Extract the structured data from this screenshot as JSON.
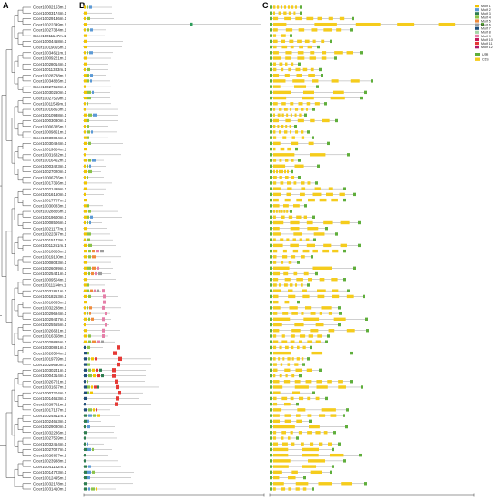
{
  "panels": {
    "a": "A",
    "b": "B",
    "c": "C"
  },
  "genes": [
    "Cicer10002163m.1",
    "Cicer10003174m.1",
    "Cicer10029136m.1",
    "Cicer10022349m.1",
    "Cicer10027334m.1",
    "Cicer10011147m.1",
    "Cicer10004458m.1",
    "Cicer10019055m.1",
    "Cicer10034611m.1",
    "Cicer10009221m.1",
    "Cicer10028014m.1",
    "Cicer10011333m.1",
    "Cicer10028788m.1",
    "Cicer10034826m.1",
    "Cicer10027650m.1",
    "Cicer10030260m.1",
    "Cicer10027559m.1",
    "Cicer10011549m.1",
    "Cicer10016853m.1",
    "Cicer10010938m.1",
    "Cicer10003080m.1",
    "Cicer10006385m.1",
    "Cicer10009851m.1",
    "Cicer10030884m.1",
    "Cicer10030494m.1",
    "Cicer10019624m.1",
    "Cicer10031682m.1",
    "Cicer10016462m.1",
    "Cicer10003423m.1",
    "Cicer10027020m.1",
    "Cicer10006776m.1",
    "Cicer10017366m.1",
    "Cicer10021499m.1",
    "Cicer10016160m.1",
    "Cicer10017707m.1",
    "Cicer10030083m.1",
    "Cicer10028826m.1",
    "Cicer10019600m.1",
    "Cicer10008506m.1",
    "Cicer10021177m.1",
    "Cicer10022397m.1",
    "Cicer10015173m.1",
    "Cicer10011261m.1",
    "Cicer10010826m.1",
    "Cicer10019100m.1",
    "Cicer10008033m.1",
    "Cicer10026099m.1",
    "Cicer10025441m.1",
    "Cicer10009504m.1",
    "Cicer10011134m.1",
    "Cicer10031861m.1",
    "Cicer10018253m.1",
    "Cicer10018063m.1",
    "Cicer10032288m.1",
    "Cicer10029694m.1",
    "Cicer10029447m.1",
    "Cicer10025555m.1",
    "Cicer10026631m.1",
    "Cicer10016358m.1",
    "Cicer10029895m.1",
    "Cicer10030891m.1",
    "Cicer10026504m.1",
    "Cicer10019759m.1",
    "Cicer10029630m.1",
    "Cicer10030241m.1",
    "Cicer10004314m.1",
    "Cicer10026701m.1",
    "Cicer10031667m.1",
    "Cicer10007204m.1",
    "Cicer10014663m.1",
    "Cicer10028721m.1",
    "Cicer10017137m.1",
    "Cicer10024811m.1",
    "Cicer10024653m.1",
    "Cicer10029080m.1",
    "Cicer10032286m.1",
    "Cicer10027559m.1",
    "Cicer10032454m.1",
    "Cicer10027027m.1",
    "Cicer10026867m.1",
    "Cicer10023988m.1",
    "Cicer10041182m.1",
    "Cicer10014723m.1",
    "Cicer10012495m.1",
    "Cicer10032178m.1",
    "Cicer10031410m.1"
  ],
  "motif_legend": [
    "Motif 1",
    "Motif 2",
    "Motif 3",
    "Motif 4",
    "Motif 5",
    "Motif 6",
    "Motif 7",
    "Motif 8",
    "Motif 9",
    "Motif 10",
    "Motif 11",
    "Motif 12"
  ],
  "motif_colors": [
    "#f2c500",
    "#5c9ad6",
    "#2e7d4f",
    "#8bc34a",
    "#f08a3a",
    "#9e9e9e",
    "#1f4e79",
    "#a5d6a7",
    "#e57fa8",
    "#c2185b",
    "#e53935",
    "#b0186a"
  ],
  "gene_structure_legend": [
    "UTR",
    "CDS"
  ],
  "gene_structure_colors": {
    "UTR": "#5fae3b",
    "CDS": "#f5cc1c"
  }
}
